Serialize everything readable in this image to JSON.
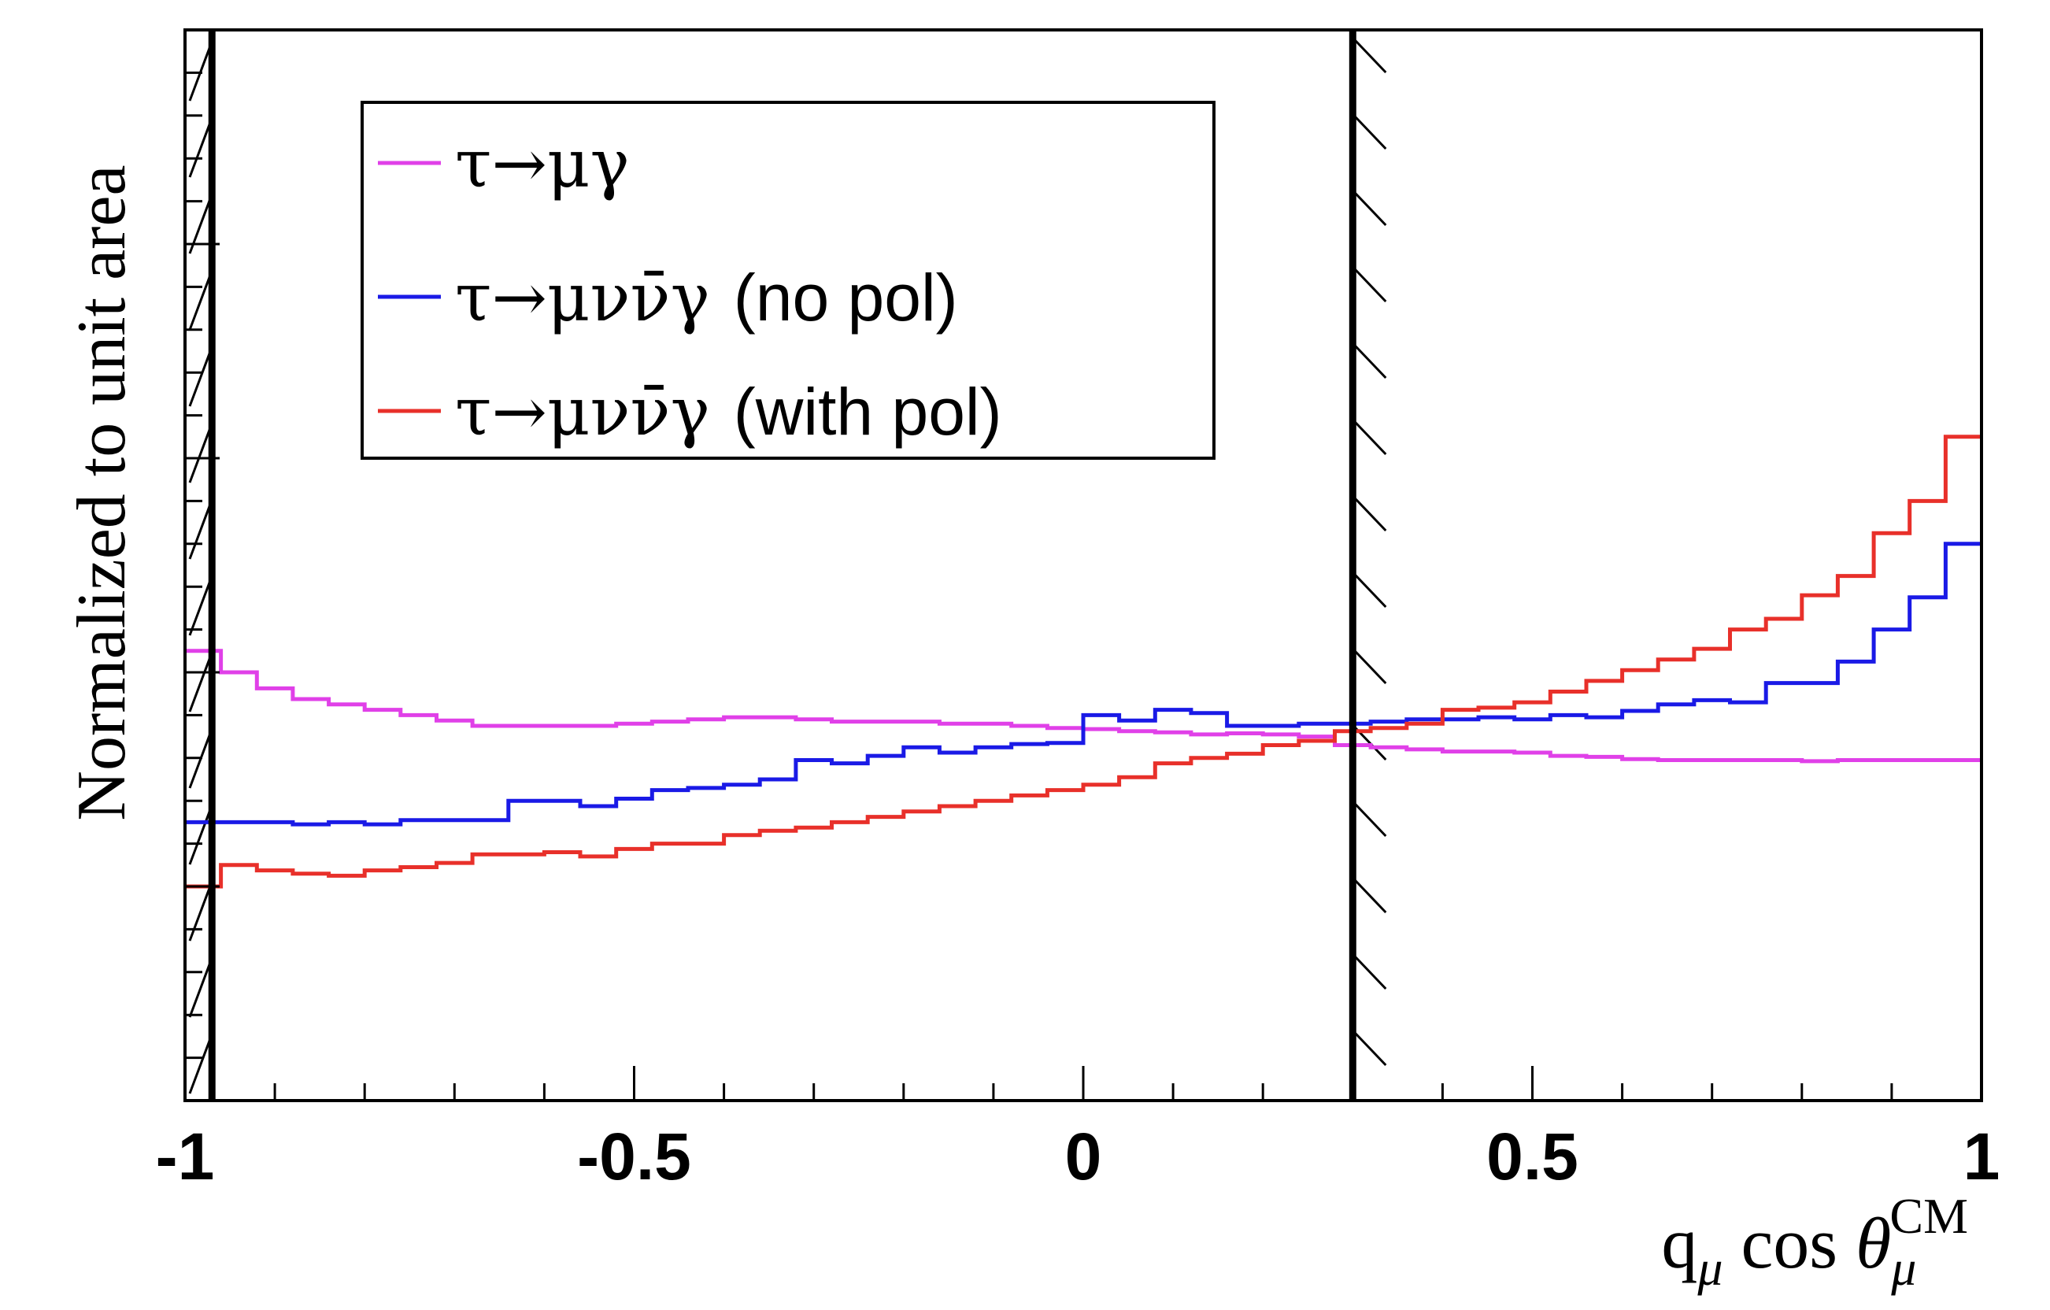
{
  "chart_data": {
    "type": "line",
    "style": "step-histogram",
    "title": "",
    "xlabel": {
      "base": "q",
      "base_sub": "μ",
      "middle": " cos ",
      "theta": "θ",
      "theta_sub": "μ",
      "theta_sup": "CM"
    },
    "ylabel": "Normalized to unit area",
    "xlim": [
      -1,
      1
    ],
    "ylim": [
      0,
      1
    ],
    "x_tick_labels": [
      {
        "value": -1,
        "label": "-1"
      },
      {
        "value": -0.5,
        "label": "-0.5"
      },
      {
        "value": 0,
        "label": "0"
      },
      {
        "value": 0.5,
        "label": "0.5"
      },
      {
        "value": 1,
        "label": "1"
      }
    ],
    "cut_lines": [
      -0.97,
      0.3
    ],
    "bin_edges_start": -1,
    "bin_width": 0.04,
    "legend_position": "top-left",
    "series": [
      {
        "name": "τ→μγ",
        "label_main": "τ→μγ",
        "label_suffix": "",
        "color": "#e040e8",
        "values": [
          0.42,
          0.4,
          0.385,
          0.375,
          0.37,
          0.365,
          0.36,
          0.355,
          0.35,
          0.35,
          0.35,
          0.35,
          0.352,
          0.354,
          0.356,
          0.358,
          0.358,
          0.356,
          0.354,
          0.354,
          0.354,
          0.352,
          0.352,
          0.35,
          0.348,
          0.347,
          0.345,
          0.344,
          0.342,
          0.343,
          0.342,
          0.34,
          0.332,
          0.33,
          0.328,
          0.326,
          0.326,
          0.325,
          0.322,
          0.321,
          0.319,
          0.318,
          0.318,
          0.318,
          0.318,
          0.317,
          0.318,
          0.318,
          0.318,
          0.318
        ]
      },
      {
        "name": "τ→μνν̄γ (no pol)",
        "label_main": "τ→μνν̄γ",
        "label_suffix": "(no pol)",
        "color": "#1a1ae6",
        "values": [
          0.26,
          0.26,
          0.26,
          0.258,
          0.26,
          0.258,
          0.262,
          0.262,
          0.262,
          0.28,
          0.28,
          0.275,
          0.282,
          0.29,
          0.292,
          0.295,
          0.3,
          0.318,
          0.315,
          0.322,
          0.33,
          0.325,
          0.33,
          0.333,
          0.334,
          0.36,
          0.355,
          0.365,
          0.362,
          0.35,
          0.35,
          0.352,
          0.352,
          0.354,
          0.356,
          0.356,
          0.358,
          0.356,
          0.36,
          0.358,
          0.364,
          0.37,
          0.374,
          0.372,
          0.39,
          0.39,
          0.41,
          0.44,
          0.47,
          0.52
        ]
      },
      {
        "name": "τ→μνν̄γ (with pol)",
        "label_main": "τ→μνν̄γ",
        "label_suffix": "(with pol)",
        "color": "#e8302a",
        "values": [
          0.2,
          0.22,
          0.215,
          0.212,
          0.21,
          0.215,
          0.218,
          0.222,
          0.23,
          0.23,
          0.232,
          0.228,
          0.235,
          0.24,
          0.24,
          0.248,
          0.252,
          0.255,
          0.26,
          0.265,
          0.27,
          0.275,
          0.28,
          0.285,
          0.29,
          0.295,
          0.302,
          0.315,
          0.32,
          0.324,
          0.332,
          0.336,
          0.345,
          0.348,
          0.352,
          0.365,
          0.367,
          0.372,
          0.382,
          0.392,
          0.402,
          0.412,
          0.422,
          0.44,
          0.45,
          0.472,
          0.49,
          0.53,
          0.56,
          0.62
        ]
      }
    ]
  }
}
